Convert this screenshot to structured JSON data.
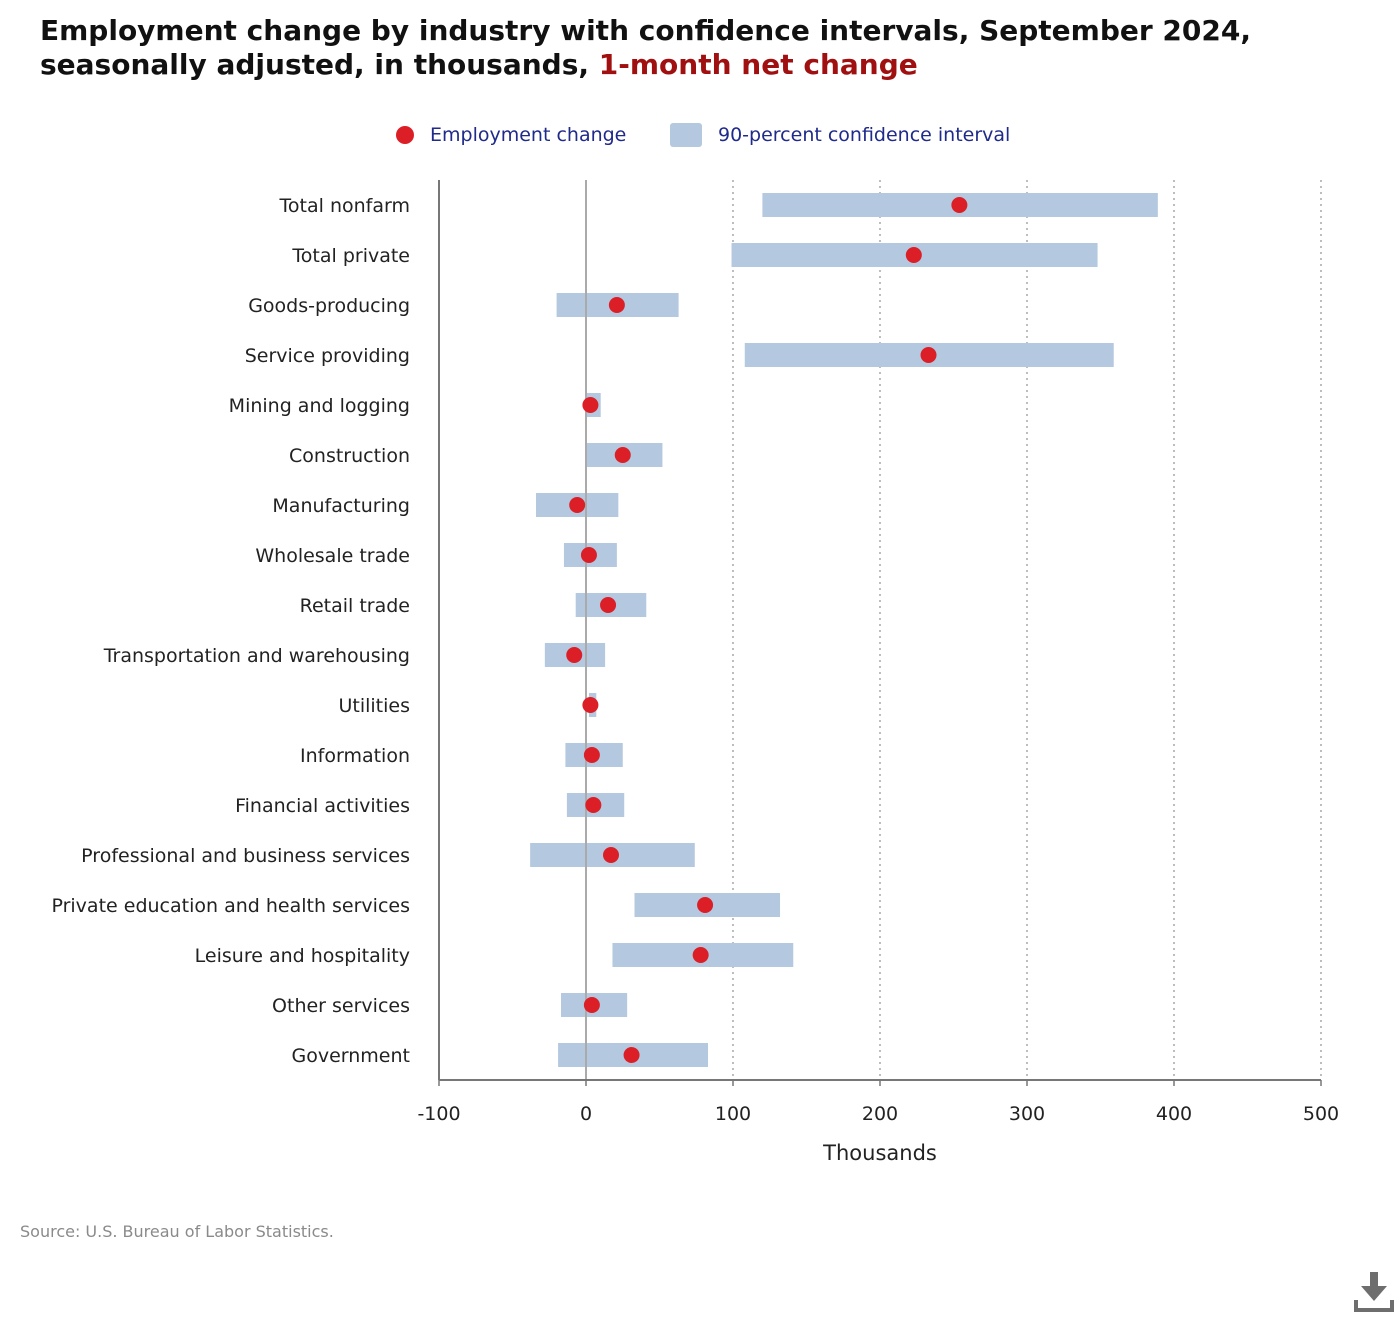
{
  "header": {
    "title_main": "Employment change by industry with confidence intervals, September 2024, seasonally adjusted, in thousands,",
    "title_accent": "1-month net change"
  },
  "legend": {
    "point_label": "Employment change",
    "interval_label": "90-percent confidence interval"
  },
  "footer": {
    "source": "Source: U.S. Bureau of Labor Statistics."
  },
  "colors": {
    "point": "#dc1f26",
    "interval": "#b4c8df",
    "axis": "#777777",
    "zero_line": "#aaaaaa",
    "grid": "#9a9a9a",
    "legend_text": "#1f2a8a",
    "title_accent": "#a01010"
  },
  "icons": {
    "download": "download-icon"
  },
  "chart_data": {
    "type": "dot-interval",
    "orientation": "horizontal",
    "xlabel": "Thousands",
    "xlim": [
      -100,
      500
    ],
    "xticks": [
      -100,
      0,
      100,
      200,
      300,
      400,
      500
    ],
    "grid": "vertical dotted",
    "legend_position": "top-center",
    "categories": [
      "Total nonfarm",
      "Total private",
      "Goods-producing",
      "Service providing",
      "Mining and logging",
      "Construction",
      "Manufacturing",
      "Wholesale trade",
      "Retail trade",
      "Transportation and warehousing",
      "Utilities",
      "Information",
      "Financial activities",
      "Professional and business services",
      "Private education and health services",
      "Leisure and hospitality",
      "Other services",
      "Government"
    ],
    "series": [
      {
        "name": "Employment change",
        "values": [
          254,
          223,
          21,
          233,
          3,
          25,
          -6,
          2,
          15,
          -8,
          3,
          4,
          5,
          17,
          81,
          78,
          4,
          31
        ]
      },
      {
        "name": "90-percent confidence interval",
        "low": [
          120,
          99,
          -20,
          108,
          0,
          0,
          -34,
          -15,
          -7,
          -28,
          2,
          -14,
          -13,
          -38,
          33,
          18,
          -17,
          -19
        ],
        "high": [
          389,
          348,
          63,
          359,
          10,
          52,
          22,
          21,
          41,
          13,
          7,
          25,
          26,
          74,
          132,
          141,
          28,
          83
        ]
      }
    ]
  }
}
